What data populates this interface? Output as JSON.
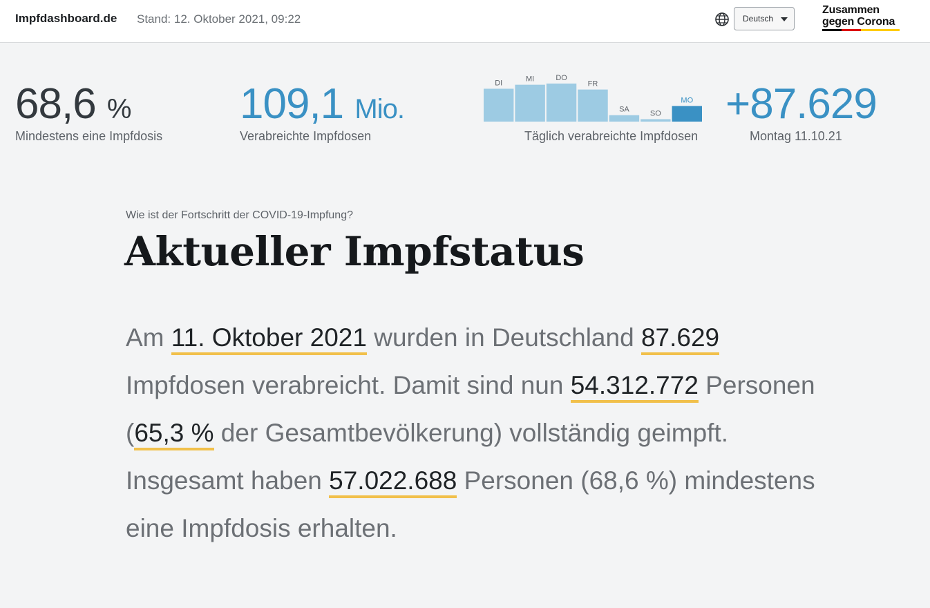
{
  "header": {
    "site_name": "Impfdashboard.de",
    "stand": "Stand: 12. Oktober 2021, 09:22",
    "language": "Deutsch",
    "globe_icon": "globe-icon",
    "logo": {
      "line1": "Zusammen",
      "line2": "gegen Corona",
      "stripe_colors": [
        "#000000",
        "#dd0000",
        "#ffcc00",
        "#ffcc00"
      ]
    }
  },
  "kpis": {
    "first_dose": {
      "value": "68,6",
      "unit": "%",
      "label": "Mindestens eine Impfdosis"
    },
    "total_doses": {
      "value": "109,1",
      "unit": "Mio.",
      "label": "Verabreichte Impfdosen"
    },
    "daily": {
      "label": "Täglich verabreichte Impfdosen"
    },
    "latest": {
      "value": "+87.629",
      "label": "Montag 11.10.21"
    }
  },
  "chart_data": {
    "type": "bar",
    "categories": [
      "DI",
      "MI",
      "DO",
      "FR",
      "SA",
      "SO",
      "MO"
    ],
    "values": [
      0.82,
      0.92,
      0.95,
      0.8,
      0.16,
      0.06,
      0.39
    ],
    "ylim": [
      0,
      1
    ],
    "highlight_index": 6,
    "colors": {
      "bar": "#9dcbe3",
      "highlight": "#3a91c4",
      "label": "#5d6268",
      "highlight_label": "#3a91c4"
    }
  },
  "main": {
    "eyebrow": "Wie ist der Fortschritt der COVID-19-Impfung?",
    "heading": "Aktueller Impfstatus",
    "paragraph": {
      "t1": "Am ",
      "h1": "11. Oktober 2021",
      "t2": " wurden in Deutschland ",
      "h2": "87.629",
      "t3": " Impfdosen verabreicht. Damit sind nun ",
      "h3": "54.312.772",
      "t4": " Personen (",
      "h4": "65,3 %",
      "t5": " der Gesamtbevölkerung) vollständig geimpft. Insgesamt haben ",
      "h5": "57.022.688",
      "t6": " Personen (68,6 %) mindestens eine Impfdosis erhalten."
    }
  },
  "colors": {
    "accent": "#3a91c4",
    "underline": "#f1c04b",
    "background": "#f3f4f5"
  }
}
